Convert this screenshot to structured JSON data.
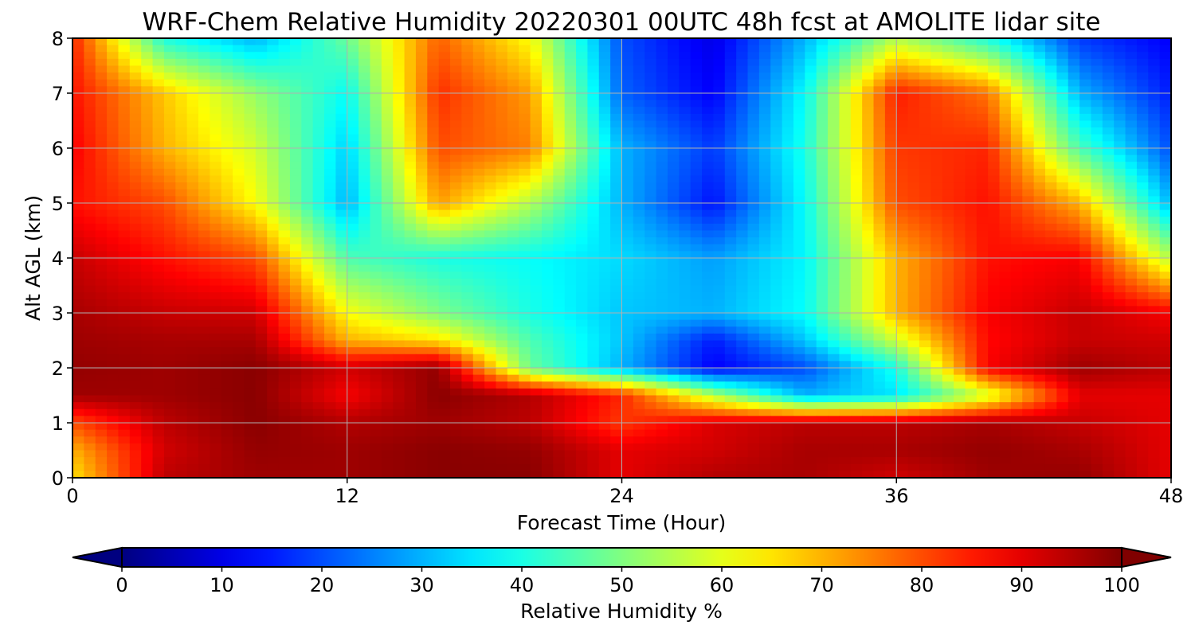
{
  "chart_data": {
    "type": "heatmap",
    "title": "WRF-Chem Relative Humidity 20220301 00UTC 48h fcst at AMOLITE lidar site",
    "xlabel": "Forecast Time (Hour)",
    "ylabel": "Alt AGL (km)",
    "xlim": [
      0,
      48
    ],
    "ylim": [
      0,
      8
    ],
    "xticks": [
      "0",
      "12",
      "24",
      "36",
      "48"
    ],
    "yticks": [
      "0",
      "1",
      "2",
      "3",
      "4",
      "5",
      "6",
      "7",
      "8"
    ],
    "grid": true,
    "colormap": "jet",
    "colorbar": {
      "label": "Relative Humidity %",
      "min": 0,
      "max": 100,
      "ticks": [
        "0",
        "10",
        "20",
        "30",
        "40",
        "50",
        "60",
        "70",
        "80",
        "90",
        "100"
      ],
      "extend": "both",
      "orientation": "horizontal",
      "position": "bottom"
    },
    "x": [
      0,
      4,
      8,
      12,
      16,
      20,
      24,
      28,
      32,
      36,
      40,
      44,
      48
    ],
    "y": [
      0,
      0.5,
      1,
      1.5,
      2,
      2.5,
      3,
      4,
      5,
      6,
      7,
      8
    ],
    "z": [
      [
        65,
        94,
        97,
        97,
        99,
        99,
        90,
        95,
        96,
        92,
        97,
        98,
        90
      ],
      [
        70,
        92,
        98,
        97,
        99,
        98,
        90,
        92,
        96,
        96,
        98,
        96,
        90
      ],
      [
        80,
        94,
        99,
        95,
        97,
        94,
        82,
        91,
        94,
        94,
        96,
        93,
        90
      ],
      [
        97,
        97,
        99,
        88,
        99,
        95,
        84,
        55,
        30,
        35,
        58,
        90,
        90
      ],
      [
        98,
        97,
        99,
        92,
        98,
        48,
        30,
        12,
        20,
        40,
        88,
        97,
        94
      ],
      [
        97,
        96,
        96,
        70,
        65,
        45,
        32,
        15,
        32,
        58,
        87,
        93,
        92
      ],
      [
        96,
        93,
        92,
        62,
        50,
        40,
        32,
        30,
        38,
        70,
        88,
        93,
        88
      ],
      [
        93,
        86,
        80,
        45,
        40,
        38,
        34,
        28,
        37,
        70,
        86,
        88,
        55
      ],
      [
        86,
        80,
        62,
        30,
        72,
        55,
        30,
        14,
        38,
        80,
        86,
        70,
        30
      ],
      [
        88,
        70,
        58,
        33,
        80,
        75,
        30,
        18,
        40,
        82,
        84,
        45,
        20
      ],
      [
        86,
        68,
        52,
        38,
        83,
        72,
        22,
        12,
        38,
        85,
        76,
        30,
        15
      ],
      [
        84,
        40,
        30,
        48,
        78,
        62,
        20,
        10,
        30,
        55,
        40,
        18,
        12
      ]
    ],
    "colors": {
      "axis": "#000000",
      "grid": "#b0b0b0"
    }
  }
}
